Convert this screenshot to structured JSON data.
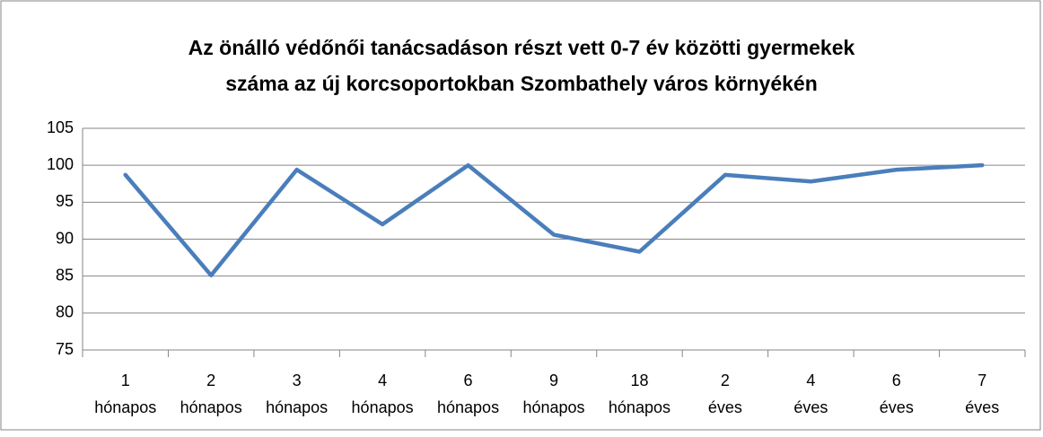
{
  "chart_data": {
    "type": "line",
    "title": [
      "Az önálló védőnői tanácsadáson részt vett 0-7 év közötti gyermekek",
      "száma az új korcsoportokban Szombathely város környékén"
    ],
    "categories": [
      "1 hónapos",
      "2 hónapos",
      "3 hónapos",
      "4 hónapos",
      "6 hónapos",
      "9 hónapos",
      "18 hónapos",
      "2 éves",
      "4 éves",
      "6 éves",
      "7 éves"
    ],
    "series": [
      {
        "color": "#4a7ebb",
        "values": [
          98.7,
          85.1,
          99.4,
          92,
          100,
          90.6,
          88.3,
          98.7,
          97.8,
          99.4,
          100
        ]
      }
    ],
    "ylim": [
      75,
      105
    ],
    "yticks": [
      75,
      80,
      85,
      90,
      95,
      100,
      105
    ],
    "grid": true
  }
}
